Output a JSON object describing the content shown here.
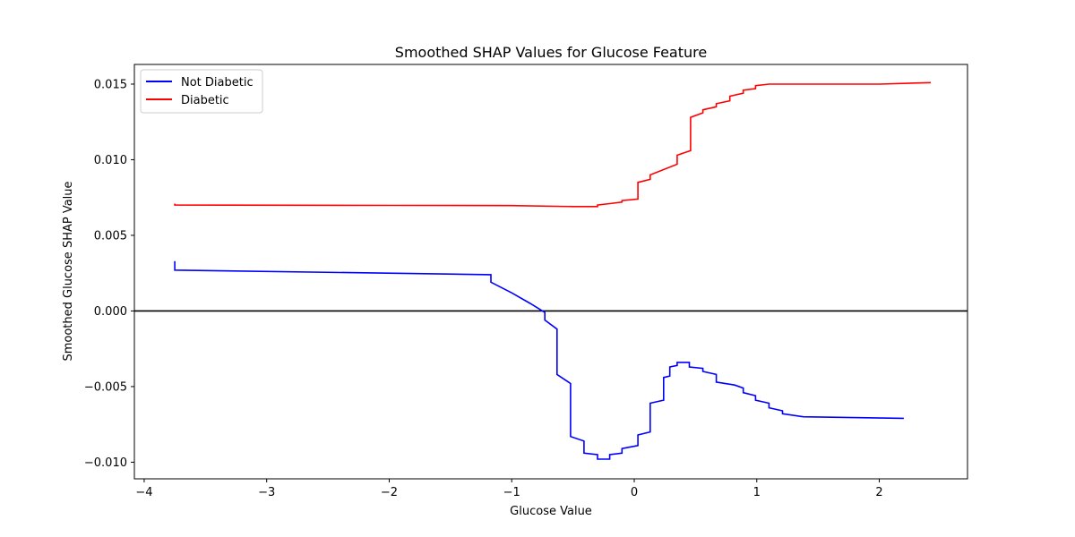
{
  "chart_data": {
    "type": "line",
    "title": "Smoothed SHAP Values for Glucose Feature",
    "xlabel": "Glucose Value",
    "ylabel": "Smoothed Glucose SHAP Value",
    "xlim": [
      -4.08,
      2.72
    ],
    "ylim": [
      -0.0111,
      0.0163
    ],
    "x_ticks": [
      -4,
      -3,
      -2,
      -1,
      0,
      1,
      2
    ],
    "x_tick_labels": [
      "−4",
      "−3",
      "−2",
      "−1",
      "0",
      "1",
      "2"
    ],
    "y_ticks": [
      -0.01,
      -0.005,
      0,
      0.005,
      0.01,
      0.015
    ],
    "y_tick_labels": [
      "−0.010",
      "−0.005",
      "0.000",
      "0.005",
      "0.010",
      "0.015"
    ],
    "hline": {
      "y": 0,
      "color": "#000000"
    },
    "legend_position": "upper-left",
    "series": [
      {
        "name": "Not Diabetic",
        "color": "#0000ff",
        "points": [
          [
            -3.75,
            0.0033
          ],
          [
            -3.75,
            0.0027
          ],
          [
            -1.17,
            0.0024
          ],
          [
            -1.17,
            0.0019
          ],
          [
            -1.0,
            0.0012
          ],
          [
            -0.85,
            0.0005
          ],
          [
            -0.73,
            -0.0001
          ],
          [
            -0.73,
            -0.0006
          ],
          [
            -0.63,
            -0.0012
          ],
          [
            -0.63,
            -0.0042
          ],
          [
            -0.52,
            -0.0048
          ],
          [
            -0.52,
            -0.0083
          ],
          [
            -0.41,
            -0.0086
          ],
          [
            -0.41,
            -0.0094
          ],
          [
            -0.3,
            -0.0095
          ],
          [
            -0.3,
            -0.0098
          ],
          [
            -0.2,
            -0.0098
          ],
          [
            -0.2,
            -0.0095
          ],
          [
            -0.1,
            -0.0094
          ],
          [
            -0.1,
            -0.0091
          ],
          [
            0.03,
            -0.0089
          ],
          [
            0.03,
            -0.0082
          ],
          [
            0.13,
            -0.008
          ],
          [
            0.13,
            -0.0061
          ],
          [
            0.24,
            -0.0059
          ],
          [
            0.24,
            -0.0044
          ],
          [
            0.29,
            -0.0043
          ],
          [
            0.29,
            -0.0037
          ],
          [
            0.35,
            -0.0036
          ],
          [
            0.35,
            -0.0034
          ],
          [
            0.45,
            -0.0034
          ],
          [
            0.45,
            -0.0037
          ],
          [
            0.56,
            -0.0038
          ],
          [
            0.56,
            -0.004
          ],
          [
            0.67,
            -0.0042
          ],
          [
            0.67,
            -0.0047
          ],
          [
            0.82,
            -0.0049
          ],
          [
            0.89,
            -0.0051
          ],
          [
            0.89,
            -0.0054
          ],
          [
            0.99,
            -0.0056
          ],
          [
            0.99,
            -0.0059
          ],
          [
            1.1,
            -0.0061
          ],
          [
            1.1,
            -0.0064
          ],
          [
            1.21,
            -0.0066
          ],
          [
            1.21,
            -0.0068
          ],
          [
            1.38,
            -0.007
          ],
          [
            2.2,
            -0.0071
          ]
        ]
      },
      {
        "name": "Diabetic",
        "color": "#ff0000",
        "points": [
          [
            -3.75,
            0.0071
          ],
          [
            -3.75,
            0.007
          ],
          [
            -2.0,
            0.00698
          ],
          [
            -1.0,
            0.00697
          ],
          [
            -0.5,
            0.0069
          ],
          [
            -0.3,
            0.0069
          ],
          [
            -0.3,
            0.007
          ],
          [
            -0.2,
            0.0071
          ],
          [
            -0.1,
            0.0072
          ],
          [
            -0.1,
            0.0073
          ],
          [
            0.03,
            0.0074
          ],
          [
            0.03,
            0.0085
          ],
          [
            0.13,
            0.0087
          ],
          [
            0.13,
            0.009
          ],
          [
            0.35,
            0.0097
          ],
          [
            0.35,
            0.0103
          ],
          [
            0.46,
            0.0106
          ],
          [
            0.46,
            0.0128
          ],
          [
            0.56,
            0.0131
          ],
          [
            0.56,
            0.0133
          ],
          [
            0.67,
            0.0135
          ],
          [
            0.67,
            0.0137
          ],
          [
            0.78,
            0.0139
          ],
          [
            0.78,
            0.0142
          ],
          [
            0.89,
            0.0144
          ],
          [
            0.89,
            0.0146
          ],
          [
            0.99,
            0.0147
          ],
          [
            0.99,
            0.0149
          ],
          [
            1.1,
            0.015
          ],
          [
            2.0,
            0.015
          ],
          [
            2.42,
            0.0151
          ]
        ]
      }
    ]
  }
}
